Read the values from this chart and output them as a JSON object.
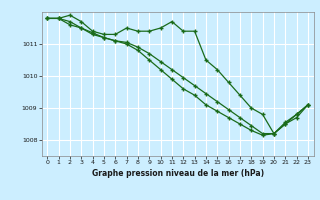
{
  "bg_color": "#cceeff",
  "grid_color": "#ffffff",
  "line_color": "#1a6b1a",
  "xlabel": "Graphe pression niveau de la mer (hPa)",
  "ylim": [
    1007.5,
    1012.0
  ],
  "xlim": [
    -0.5,
    23.5
  ],
  "yticks": [
    1008,
    1009,
    1010,
    1011
  ],
  "xticks": [
    0,
    1,
    2,
    3,
    4,
    5,
    6,
    7,
    8,
    9,
    10,
    11,
    12,
    13,
    14,
    15,
    16,
    17,
    18,
    19,
    20,
    21,
    22,
    23
  ],
  "series1": [
    1011.8,
    1011.8,
    1011.9,
    1011.7,
    1011.4,
    1011.3,
    1011.3,
    1011.5,
    1011.4,
    1011.4,
    1011.5,
    1011.7,
    1011.4,
    1011.4,
    1010.5,
    1010.2,
    1009.8,
    1009.4,
    1009.0,
    1008.8,
    1008.2,
    1008.5,
    1008.7,
    1009.1
  ],
  "series2": [
    1011.8,
    1011.8,
    1011.7,
    1011.5,
    1011.3,
    1011.2,
    1011.1,
    1011.0,
    1010.8,
    1010.5,
    1010.2,
    1009.9,
    1009.6,
    1009.4,
    1009.1,
    1008.9,
    1008.7,
    1008.5,
    1008.3,
    1008.15,
    1008.2,
    1008.55,
    1008.8,
    1009.1
  ],
  "series3": [
    1011.8,
    1011.8,
    1011.6,
    1011.5,
    1011.35,
    1011.2,
    1011.1,
    1011.05,
    1010.9,
    1010.7,
    1010.45,
    1010.2,
    1009.95,
    1009.7,
    1009.45,
    1009.2,
    1008.95,
    1008.7,
    1008.45,
    1008.2,
    1008.2,
    1008.5,
    1008.8,
    1009.1
  ]
}
